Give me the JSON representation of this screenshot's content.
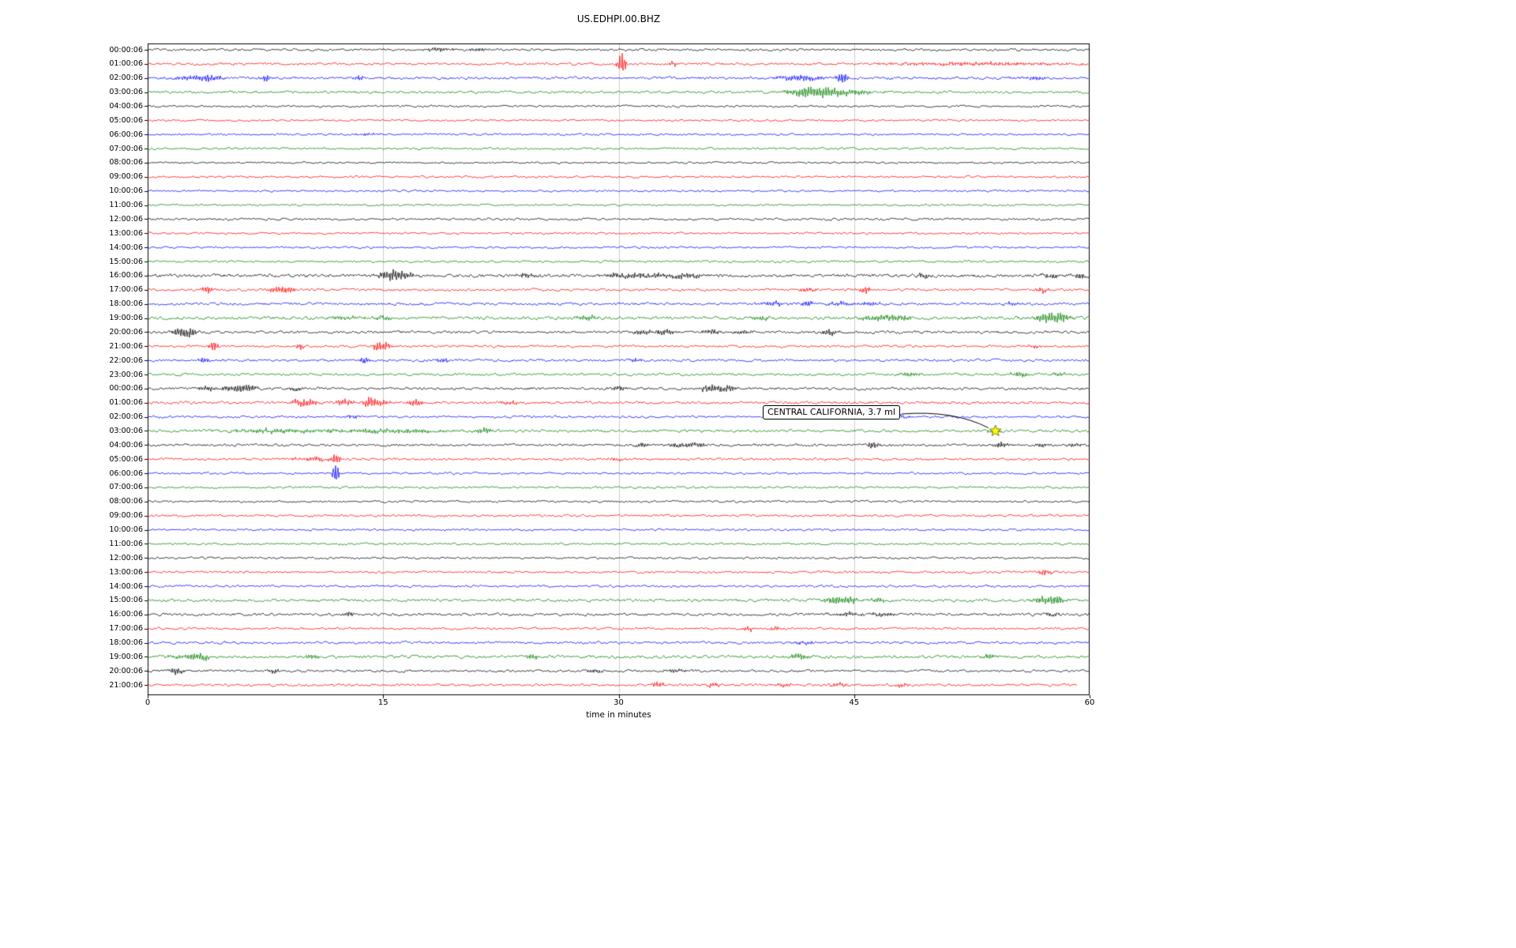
{
  "chart_data": {
    "type": "line",
    "subtype": "helicorder-dayplot",
    "title": "US.EDHPI.00.BHZ",
    "xlabel": "time in minutes",
    "x_range": [
      0,
      60
    ],
    "x_ticks": [
      "0",
      "15",
      "30",
      "45",
      "60"
    ],
    "grid_x": [
      15,
      30,
      45
    ],
    "grid_color": "#cccccc",
    "color_cycle": [
      "#000000",
      "#ff0000",
      "#0000ff",
      "#008000"
    ],
    "annotation": {
      "text": "CENTRAL CALIFORNIA, 3.7 ml",
      "row_index": 27,
      "x_minutes": 54,
      "marker": "star-icon",
      "marker_color": "#ffff00"
    },
    "rows": [
      {
        "label": "00:00:06",
        "noise": 1.1,
        "events": [
          [
            18.5,
            2.5,
            0.8
          ],
          [
            21,
            1.8,
            0.5
          ]
        ]
      },
      {
        "label": "01:00:06",
        "noise": 1.2,
        "events": [
          [
            30.2,
            14,
            0.18
          ],
          [
            33.5,
            3,
            0.3
          ],
          [
            53,
            2.2,
            4
          ]
        ]
      },
      {
        "label": "02:00:06",
        "noise": 1.3,
        "events": [
          [
            2.5,
            3,
            0.8
          ],
          [
            4,
            4,
            0.5
          ],
          [
            7.5,
            5,
            0.2
          ],
          [
            13.5,
            4,
            0.25
          ],
          [
            41.5,
            4,
            1.2
          ],
          [
            44.3,
            7,
            0.3
          ],
          [
            56.5,
            3,
            0.4
          ]
        ]
      },
      {
        "label": "03:00:06",
        "noise": 1.2,
        "events": [
          [
            41.8,
            6,
            0.8
          ],
          [
            43.2,
            5,
            0.8
          ],
          [
            45,
            3,
            1.0
          ]
        ]
      },
      {
        "label": "04:00:06",
        "noise": 1.0
      },
      {
        "label": "05:00:06",
        "noise": 0.9
      },
      {
        "label": "06:00:06",
        "noise": 1.0,
        "events": [
          [
            14,
            1.5,
            0.5
          ]
        ]
      },
      {
        "label": "07:00:06",
        "noise": 1.0
      },
      {
        "label": "08:00:06",
        "noise": 0.9
      },
      {
        "label": "09:00:06",
        "noise": 1.0
      },
      {
        "label": "10:00:06",
        "noise": 1.0
      },
      {
        "label": "11:00:06",
        "noise": 0.9
      },
      {
        "label": "12:00:06",
        "noise": 1.1
      },
      {
        "label": "13:00:06",
        "noise": 1.0
      },
      {
        "label": "14:00:06",
        "noise": 1.0
      },
      {
        "label": "15:00:06",
        "noise": 1.0
      },
      {
        "label": "16:00:06",
        "noise": 1.6,
        "events": [
          [
            15.3,
            5,
            0.5
          ],
          [
            16.2,
            5,
            0.6
          ],
          [
            24,
            2.5,
            0.5
          ],
          [
            29.5,
            3,
            0.4
          ],
          [
            31,
            3.5,
            0.7
          ],
          [
            33,
            3,
            0.8
          ],
          [
            34.5,
            3,
            0.5
          ],
          [
            49.5,
            3.5,
            0.3
          ],
          [
            57.5,
            3,
            0.4
          ],
          [
            59.3,
            4,
            0.3
          ]
        ]
      },
      {
        "label": "17:00:06",
        "noise": 1.2,
        "events": [
          [
            3.8,
            5,
            0.25
          ],
          [
            8.3,
            4,
            0.4
          ],
          [
            9,
            3,
            0.3
          ],
          [
            42,
            2.5,
            0.4
          ],
          [
            45.7,
            5,
            0.2
          ],
          [
            57,
            4,
            0.25
          ]
        ]
      },
      {
        "label": "18:00:06",
        "noise": 1.3,
        "events": [
          [
            40,
            3,
            0.5
          ],
          [
            42,
            4,
            0.3
          ],
          [
            44,
            3,
            0.5
          ],
          [
            46,
            3,
            0.4
          ],
          [
            55,
            2.5,
            0.4
          ]
        ]
      },
      {
        "label": "19:00:06",
        "noise": 1.5,
        "events": [
          [
            12.5,
            3,
            0.6
          ],
          [
            15,
            3.5,
            0.4
          ],
          [
            28,
            3,
            0.5
          ],
          [
            39,
            3,
            0.4
          ],
          [
            46.5,
            4,
            0.8
          ],
          [
            48,
            3,
            0.5
          ],
          [
            57.3,
            6,
            0.5
          ],
          [
            58.2,
            5,
            0.4
          ]
        ]
      },
      {
        "label": "20:00:06",
        "noise": 1.3,
        "events": [
          [
            2,
            6,
            0.3
          ],
          [
            2.7,
            6,
            0.3
          ],
          [
            31.5,
            3,
            0.6
          ],
          [
            33,
            3,
            0.5
          ],
          [
            36,
            3.5,
            0.5
          ],
          [
            38,
            3,
            0.4
          ],
          [
            43.5,
            4,
            0.4
          ]
        ]
      },
      {
        "label": "21:00:06",
        "noise": 1.1,
        "events": [
          [
            4.2,
            7,
            0.2
          ],
          [
            9.7,
            4,
            0.2
          ],
          [
            14.6,
            6,
            0.25
          ],
          [
            15.2,
            5,
            0.2
          ],
          [
            56.5,
            2.5,
            0.3
          ]
        ]
      },
      {
        "label": "22:00:06",
        "noise": 1.2,
        "events": [
          [
            3.6,
            4,
            0.25
          ],
          [
            13.8,
            5,
            0.2
          ],
          [
            18.8,
            3.5,
            0.3
          ],
          [
            31,
            2.5,
            0.4
          ]
        ]
      },
      {
        "label": "23:00:06",
        "noise": 1.2,
        "events": [
          [
            48.5,
            3,
            0.6
          ],
          [
            55.5,
            3.5,
            0.5
          ],
          [
            58,
            2.5,
            0.4
          ]
        ]
      },
      {
        "label": "00:00:06",
        "noise": 1.3,
        "events": [
          [
            3.8,
            4,
            0.4
          ],
          [
            5.5,
            4.5,
            0.5
          ],
          [
            6.5,
            4,
            0.4
          ],
          [
            9.5,
            3,
            0.3
          ],
          [
            30,
            2.5,
            0.4
          ],
          [
            35.8,
            5,
            0.5
          ],
          [
            37,
            4.5,
            0.4
          ]
        ]
      },
      {
        "label": "01:00:06",
        "noise": 1.3,
        "events": [
          [
            9.7,
            5,
            0.4
          ],
          [
            10.5,
            4,
            0.3
          ],
          [
            12.5,
            5,
            0.4
          ],
          [
            14.2,
            8,
            0.3
          ],
          [
            15,
            4,
            0.3
          ],
          [
            17,
            5,
            0.3
          ],
          [
            23,
            2.5,
            0.4
          ]
        ]
      },
      {
        "label": "02:00:06",
        "noise": 1.1,
        "events": [
          [
            13,
            2,
            0.4
          ],
          [
            48,
            2,
            0.4
          ]
        ]
      },
      {
        "label": "03:00:06",
        "noise": 1.3,
        "events": [
          [
            8,
            2.5,
            2
          ],
          [
            15,
            2.5,
            3
          ],
          [
            21.5,
            3,
            0.4
          ],
          [
            54,
            3,
            0.3
          ]
        ]
      },
      {
        "label": "04:00:06",
        "noise": 1.2,
        "events": [
          [
            31.5,
            3.5,
            0.3
          ],
          [
            33.8,
            3,
            0.6
          ],
          [
            35,
            3,
            0.4
          ],
          [
            46.2,
            6,
            0.25
          ],
          [
            54.3,
            4,
            0.3
          ],
          [
            57,
            3,
            0.3
          ],
          [
            59,
            3,
            0.3
          ]
        ]
      },
      {
        "label": "05:00:06",
        "noise": 1.2,
        "events": [
          [
            10.5,
            3,
            0.8
          ],
          [
            12,
            6,
            0.2
          ],
          [
            30,
            2,
            0.5
          ]
        ]
      },
      {
        "label": "06:00:06",
        "noise": 1.0,
        "events": [
          [
            12,
            16,
            0.15
          ]
        ]
      },
      {
        "label": "07:00:06",
        "noise": 1.0
      },
      {
        "label": "08:00:06",
        "noise": 1.0
      },
      {
        "label": "09:00:06",
        "noise": 1.1
      },
      {
        "label": "10:00:06",
        "noise": 1.0
      },
      {
        "label": "11:00:06",
        "noise": 1.0
      },
      {
        "label": "12:00:06",
        "noise": 1.0
      },
      {
        "label": "13:00:06",
        "noise": 1.1,
        "events": [
          [
            57.2,
            4.5,
            0.3
          ]
        ]
      },
      {
        "label": "14:00:06",
        "noise": 1.1
      },
      {
        "label": "15:00:06",
        "noise": 1.4,
        "events": [
          [
            43.8,
            5,
            0.5
          ],
          [
            44.8,
            4,
            0.4
          ],
          [
            46.5,
            3.5,
            0.3
          ],
          [
            57.2,
            5,
            0.5
          ],
          [
            58,
            4,
            0.3
          ]
        ]
      },
      {
        "label": "16:00:06",
        "noise": 1.3,
        "events": [
          [
            12.8,
            3.5,
            0.2
          ],
          [
            44.5,
            2.5,
            0.8
          ],
          [
            46.8,
            3,
            0.5
          ],
          [
            57.5,
            2.5,
            0.4
          ]
        ]
      },
      {
        "label": "17:00:06",
        "noise": 1.1,
        "events": [
          [
            38.3,
            3.5,
            0.25
          ],
          [
            40,
            3,
            0.25
          ]
        ]
      },
      {
        "label": "18:00:06",
        "noise": 1.2,
        "events": [
          [
            42,
            2,
            0.5
          ]
        ]
      },
      {
        "label": "19:00:06",
        "noise": 1.4,
        "events": [
          [
            2.5,
            3,
            0.8
          ],
          [
            3.5,
            3,
            0.4
          ],
          [
            10.5,
            3.5,
            0.3
          ],
          [
            24.5,
            3,
            0.3
          ],
          [
            41.5,
            3.5,
            0.6
          ],
          [
            53.5,
            3.5,
            0.3
          ]
        ]
      },
      {
        "label": "20:00:06",
        "noise": 1.2,
        "events": [
          [
            1.8,
            5,
            0.3
          ],
          [
            8,
            4,
            0.2
          ],
          [
            28.5,
            3,
            0.3
          ],
          [
            33.5,
            2.5,
            0.5
          ]
        ]
      },
      {
        "label": "21:00:06",
        "noise": 1.2,
        "end": 59.2,
        "events": [
          [
            32.5,
            3.5,
            0.3
          ],
          [
            36,
            3,
            0.3
          ],
          [
            40.5,
            3.5,
            0.3
          ],
          [
            44,
            2.5,
            0.4
          ],
          [
            48,
            3,
            0.3
          ]
        ]
      }
    ]
  }
}
